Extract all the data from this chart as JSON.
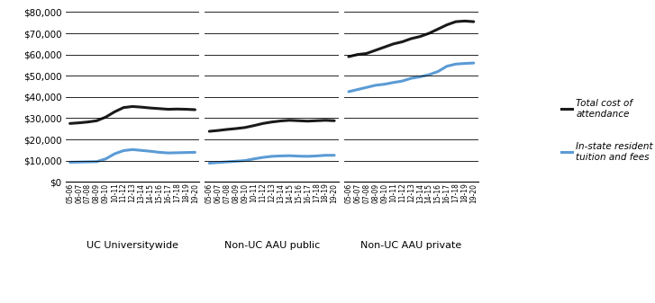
{
  "groups": [
    {
      "label": "UC Universitywide",
      "years": [
        "05-06",
        "06-07",
        "07-08",
        "08-09",
        "09-10",
        "10-11",
        "11-12",
        "12-13",
        "13-14",
        "14-15",
        "15-16",
        "16-17",
        "17-18",
        "18-19",
        "19-20"
      ],
      "total_cost": [
        27500,
        27800,
        28200,
        28800,
        30500,
        33000,
        35000,
        35500,
        35200,
        34800,
        34500,
        34200,
        34300,
        34200,
        34000
      ],
      "tuition_fees": [
        9200,
        9300,
        9400,
        9500,
        10800,
        13200,
        14700,
        15200,
        14800,
        14400,
        13900,
        13600,
        13700,
        13800,
        13900
      ]
    },
    {
      "label": "Non-UC AAU public",
      "years": [
        "05-06",
        "06-07",
        "07-08",
        "08-09",
        "09-10",
        "10-11",
        "11-12",
        "12-13",
        "13-14",
        "14-15",
        "15-16",
        "16-17",
        "17-18",
        "18-19",
        "19-20"
      ],
      "total_cost": [
        23800,
        24200,
        24700,
        25100,
        25600,
        26500,
        27500,
        28200,
        28700,
        29000,
        28800,
        28600,
        28800,
        29000,
        28800
      ],
      "tuition_fees": [
        8800,
        9100,
        9400,
        9700,
        10000,
        10800,
        11500,
        12000,
        12200,
        12300,
        12100,
        12000,
        12200,
        12500,
        12500
      ]
    },
    {
      "label": "Non-UC AAU private",
      "years": [
        "05-06",
        "06-07",
        "07-08",
        "08-09",
        "09-10",
        "10-11",
        "11-12",
        "12-13",
        "13-14",
        "14-15",
        "15-16",
        "16-17",
        "17-18",
        "18-19",
        "19-20"
      ],
      "total_cost": [
        59000,
        60000,
        60500,
        62000,
        63500,
        65000,
        66000,
        67500,
        68500,
        70000,
        72000,
        74000,
        75500,
        75800,
        75500
      ],
      "tuition_fees": [
        42500,
        43500,
        44500,
        45500,
        46000,
        46800,
        47500,
        48800,
        49500,
        50500,
        52000,
        54500,
        55500,
        55800,
        56000
      ]
    }
  ],
  "color_total": "#1a1a1a",
  "color_tuition": "#5b9bd5",
  "ylim": [
    0,
    80000
  ],
  "yticks": [
    0,
    10000,
    20000,
    30000,
    40000,
    50000,
    60000,
    70000,
    80000
  ],
  "legend_total": "Total cost of\nattendance",
  "legend_tuition": "In-state resident\ntuition and fees",
  "linewidth": 2.2,
  "tick_fontsize": 5.5,
  "label_fontsize": 8,
  "ytick_fontsize": 7.5
}
